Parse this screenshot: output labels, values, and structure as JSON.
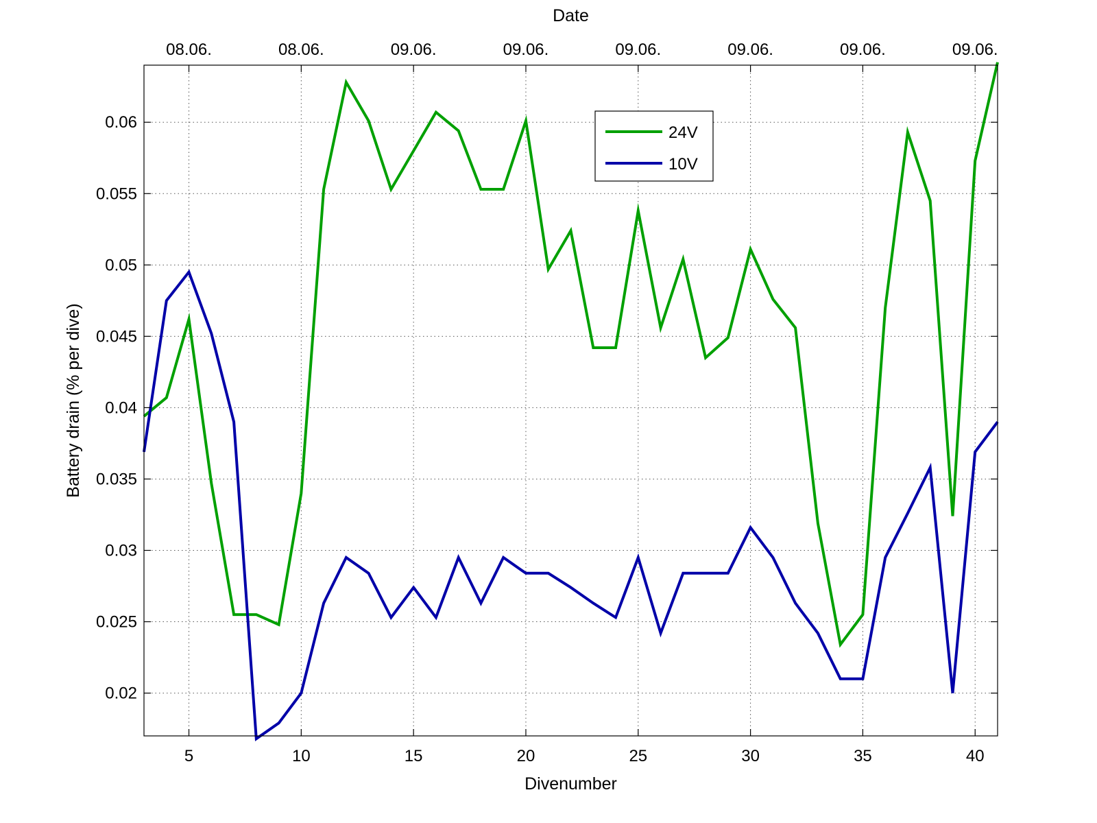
{
  "chart_data": {
    "type": "line",
    "title": "",
    "xlabel": "Divenumber",
    "ylabel": "Battery drain (% per dive)",
    "x2label": "Date",
    "xlim": [
      3,
      41
    ],
    "ylim": [
      0.017,
      0.064
    ],
    "xticks": [
      5,
      10,
      15,
      20,
      25,
      30,
      35,
      40
    ],
    "yticks": [
      0.02,
      0.025,
      0.03,
      0.035,
      0.04,
      0.045,
      0.05,
      0.055,
      0.06
    ],
    "x2ticks": [
      {
        "x": 5,
        "label": "08.06."
      },
      {
        "x": 10,
        "label": "08.06."
      },
      {
        "x": 15,
        "label": "09.06."
      },
      {
        "x": 20,
        "label": "09.06."
      },
      {
        "x": 25,
        "label": "09.06."
      },
      {
        "x": 30,
        "label": "09.06."
      },
      {
        "x": 35,
        "label": "09.06."
      },
      {
        "x": 40,
        "label": "09.06."
      }
    ],
    "grid": true,
    "legend_position": "top-center",
    "x": [
      3,
      4,
      5,
      6,
      7,
      8,
      9,
      10,
      11,
      12,
      13,
      14,
      15,
      16,
      17,
      18,
      19,
      20,
      21,
      22,
      23,
      24,
      25,
      26,
      27,
      28,
      29,
      30,
      31,
      32,
      33,
      34,
      35,
      36,
      37,
      38,
      39,
      40,
      41
    ],
    "series": [
      {
        "name": "24V",
        "color": "#00a000",
        "values": [
          0.0394,
          0.0407,
          0.0462,
          0.0347,
          0.0255,
          0.0255,
          0.0248,
          0.034,
          0.0553,
          0.0628,
          0.0601,
          0.0553,
          0.058,
          0.0607,
          0.0594,
          0.0553,
          0.0553,
          0.0601,
          0.0497,
          0.0524,
          0.0442,
          0.0442,
          0.0538,
          0.0456,
          0.0504,
          0.0435,
          0.0449,
          0.0511,
          0.0476,
          0.0456,
          0.0319,
          0.0234,
          0.0255,
          0.047,
          0.0593,
          0.0545,
          0.0324,
          0.0573,
          0.0642
        ]
      },
      {
        "name": "10V",
        "color": "#0000a8",
        "values": [
          0.0369,
          0.0475,
          0.0495,
          0.0452,
          0.039,
          0.0168,
          0.0179,
          0.02,
          0.0263,
          0.0295,
          0.0284,
          0.0253,
          0.0274,
          0.0253,
          0.0295,
          0.0263,
          0.0295,
          0.0284,
          0.0284,
          0.0274,
          0.0263,
          0.0253,
          0.0295,
          0.0242,
          0.0284,
          0.0284,
          0.0284,
          0.0316,
          0.0295,
          0.0263,
          0.0242,
          0.021,
          0.021,
          0.0295,
          0.0326,
          0.0358,
          0.02,
          0.0369,
          0.039
        ]
      }
    ]
  }
}
